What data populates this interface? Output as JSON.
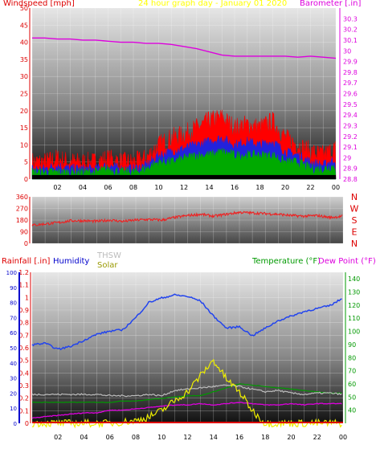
{
  "header": {
    "windspeed_label": "Windspeed [mph]",
    "graph_title": "24 hour graph day - January 01 2020",
    "barometer_label": "Barometer [.in]"
  },
  "lower_header": {
    "rainfall_label": "Rainfall [.in]",
    "humidity_label": "Humidity",
    "thsw_label": "THSW",
    "solar_label": "Solar",
    "temperature_label": "Temperature (°F)",
    "dewpoint_label": "Dew Point (°F)"
  },
  "colors": {
    "windspeed": "#ff0000",
    "gust": "#ff0000",
    "wind_blue": "#2222dd",
    "wind_green": "#00aa00",
    "barometer": "#dd00dd",
    "title": "#ffff00",
    "direction": "#ee2222",
    "humidity": "#2244ee",
    "temperature": "#009900",
    "dewpoint": "#dd00dd",
    "thsw": "#bbbbbb",
    "solar": "#eeee00",
    "rainfall": "#dd0000",
    "rain_axis": "#0000cc"
  },
  "chart_data": [
    {
      "type": "line",
      "panel": "wind-barometer",
      "x_ticks": [
        "02",
        "04",
        "06",
        "08",
        "10",
        "12",
        "14",
        "16",
        "18",
        "20",
        "22",
        "00"
      ],
      "ylabel_left": "Windspeed [mph]",
      "ylabel_right": "Barometer [.in]",
      "ylim_left": [
        0,
        50
      ],
      "y_ticks_left": [
        0,
        5,
        10,
        15,
        20,
        25,
        30,
        35,
        40,
        45,
        50
      ],
      "ylim_right": [
        28.8,
        30.4
      ],
      "y_ticks_right": [
        "28.8",
        "28.9",
        "29",
        "29.1",
        "29.2",
        "29.3",
        "29.4",
        "29.5",
        "29.6",
        "29.7",
        "29.8",
        "29.9",
        "30",
        "30.1",
        "30.2",
        "30.3"
      ],
      "x_hours": [
        0,
        1,
        2,
        3,
        4,
        5,
        6,
        7,
        8,
        9,
        10,
        11,
        12,
        13,
        14,
        15,
        16,
        17,
        18,
        19,
        20,
        21,
        22,
        23,
        24
      ],
      "series": [
        {
          "name": "Barometer",
          "axis": "right",
          "values": [
            30.12,
            30.12,
            30.11,
            30.11,
            30.1,
            30.1,
            30.09,
            30.08,
            30.08,
            30.07,
            30.07,
            30.06,
            30.04,
            30.02,
            29.99,
            29.96,
            29.95,
            29.95,
            29.95,
            29.95,
            29.95,
            29.94,
            29.95,
            29.94,
            29.93
          ]
        },
        {
          "name": "Gust",
          "axis": "left",
          "values": [
            5,
            5,
            6,
            5,
            5,
            5,
            6,
            5,
            5,
            6,
            10,
            12,
            13,
            15,
            17,
            18,
            15,
            16,
            15,
            17,
            12,
            10,
            8,
            7,
            9
          ]
        },
        {
          "name": "Wind high",
          "axis": "left",
          "values": [
            3,
            3,
            4,
            3,
            3,
            3,
            4,
            3,
            3,
            4,
            7,
            8,
            9,
            10,
            11,
            12,
            10,
            11,
            10,
            11,
            8,
            7,
            5,
            4,
            6
          ]
        },
        {
          "name": "Wind avg",
          "axis": "left",
          "values": [
            2,
            2,
            2,
            2,
            2,
            2,
            3,
            2,
            2,
            3,
            5,
            5,
            6,
            7,
            7,
            8,
            7,
            7,
            7,
            7,
            5,
            5,
            3,
            3,
            4
          ]
        }
      ]
    },
    {
      "type": "line",
      "panel": "wind-direction",
      "y_ticks_left": [
        0,
        90,
        180,
        270,
        360
      ],
      "ylim_left": [
        0,
        360
      ],
      "direction_labels": [
        "N",
        "W",
        "S",
        "E",
        "N"
      ],
      "x_hours": [
        0,
        1,
        2,
        3,
        4,
        5,
        6,
        7,
        8,
        9,
        10,
        11,
        12,
        13,
        14,
        15,
        16,
        17,
        18,
        19,
        20,
        21,
        22,
        23,
        24
      ],
      "series": [
        {
          "name": "Direction",
          "values": [
            140,
            150,
            160,
            175,
            175,
            170,
            180,
            170,
            180,
            185,
            180,
            200,
            215,
            225,
            210,
            225,
            240,
            235,
            230,
            225,
            215,
            210,
            215,
            200,
            210
          ]
        }
      ]
    },
    {
      "type": "line",
      "panel": "rain-humidity-temperature",
      "x_ticks": [
        "02",
        "04",
        "06",
        "08",
        "10",
        "12",
        "14",
        "16",
        "18",
        "20",
        "22",
        "00"
      ],
      "ylim_rain": [
        0,
        1.2
      ],
      "y_ticks_rain": [
        "0",
        "0.1",
        "0.2",
        "0.3",
        "0.4",
        "0.5",
        "0.6",
        "0.7",
        "0.8",
        "0.9",
        "1",
        "1.1",
        "1.2"
      ],
      "ylim_humidity": [
        0,
        100
      ],
      "y_ticks_humidity": [
        0,
        10,
        20,
        30,
        40,
        50,
        60,
        70,
        80,
        90,
        100
      ],
      "ylim_temperature": [
        30,
        145
      ],
      "y_ticks_temperature": [
        40,
        50,
        60,
        70,
        80,
        90,
        100,
        110,
        120,
        130,
        140
      ],
      "x_hours": [
        0,
        1,
        2,
        3,
        4,
        5,
        6,
        7,
        8,
        9,
        10,
        11,
        12,
        13,
        14,
        15,
        16,
        17,
        18,
        19,
        20,
        21,
        22,
        23,
        24
      ],
      "series": [
        {
          "name": "Humidity",
          "axis": "humidity",
          "values": [
            52,
            53,
            49,
            51,
            55,
            59,
            61,
            62,
            70,
            80,
            83,
            85,
            84,
            81,
            71,
            63,
            64,
            58,
            63,
            68,
            71,
            74,
            76,
            78,
            83
          ]
        },
        {
          "name": "Temperature",
          "axis": "temperature",
          "values": [
            46,
            46,
            46,
            46,
            46,
            46,
            46,
            47,
            47,
            48,
            49,
            50,
            51,
            51,
            54,
            57,
            60,
            59,
            58,
            57,
            56,
            55,
            54,
            53,
            53
          ]
        },
        {
          "name": "THSW",
          "axis": "temperature",
          "values": [
            52,
            52,
            52,
            52,
            52,
            52,
            51,
            51,
            51,
            52,
            51,
            55,
            56,
            57,
            58,
            59,
            58,
            56,
            54,
            55,
            53,
            52,
            53,
            53,
            52
          ]
        },
        {
          "name": "Dew Point",
          "axis": "temperature",
          "values": [
            34,
            35,
            36,
            37,
            38,
            38,
            40,
            40,
            41,
            42,
            43,
            44,
            44,
            45,
            44,
            45,
            46,
            45,
            44,
            44,
            45,
            44,
            45,
            45,
            45
          ]
        },
        {
          "name": "Solar",
          "axis": "rain",
          "values": [
            0,
            0,
            0,
            0,
            0,
            0,
            0,
            0.01,
            0.02,
            0.05,
            0.1,
            0.18,
            0.25,
            0.38,
            0.5,
            0.35,
            0.25,
            0.1,
            0,
            0,
            0,
            0,
            0,
            0,
            0
          ]
        },
        {
          "name": "Rainfall",
          "axis": "rain",
          "values": [
            0,
            0,
            0,
            0,
            0,
            0,
            0,
            0,
            0,
            0,
            0,
            0,
            0,
            0,
            0,
            0,
            0,
            0,
            0,
            0,
            0,
            0,
            0,
            0,
            0
          ]
        }
      ]
    }
  ]
}
